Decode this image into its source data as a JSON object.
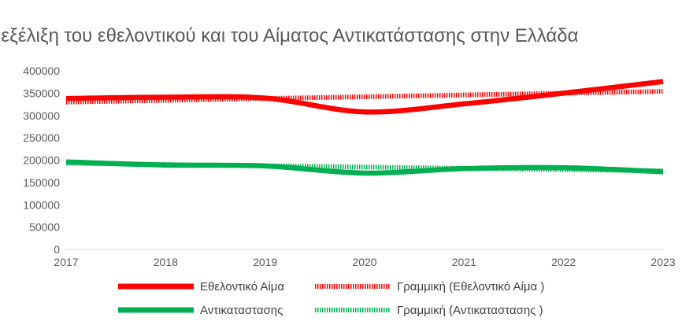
{
  "chart_data": {
    "type": "line",
    "title": "Η πορεία και εξέλιξη του εθελοντικού και του Αίματος Αντικατάστασης στην Ελλάδα",
    "xlabel": "",
    "ylabel": "",
    "x": [
      2017,
      2018,
      2019,
      2020,
      2021,
      2022,
      2023
    ],
    "x_tick_labels": [
      "2017",
      "2018",
      "2019",
      "2020",
      "2021",
      "2022",
      "2023"
    ],
    "y_tick_labels": [
      "0",
      "50000",
      "100000",
      "150000",
      "200000",
      "250000",
      "300000",
      "350000",
      "400000"
    ],
    "ylim": [
      0,
      400000
    ],
    "grid": false,
    "legend_position": "bottom",
    "series": [
      {
        "name": "Εθελοντικό Αίμα",
        "values": [
          338000,
          341000,
          339000,
          308000,
          326000,
          350000,
          376000
        ],
        "color": "#ff0000",
        "style": "solid"
      },
      {
        "name": "Αντικαταστασης",
        "values": [
          196000,
          189000,
          187000,
          171000,
          181000,
          183000,
          174000
        ],
        "color": "#00b050",
        "style": "solid"
      },
      {
        "name": "Γραμμική (Εθελοντικό Αίμα )",
        "values": [
          330000,
          334000,
          338000,
          342000,
          346000,
          350000,
          354000
        ],
        "color": "#ff0000",
        "style": "dotted"
      },
      {
        "name": "Γραμμική (Αντικαταστασης )",
        "values": [
          193000,
          191000,
          188000,
          184000,
          181000,
          178000,
          176000
        ],
        "color": "#00b050",
        "style": "dotted"
      }
    ]
  }
}
